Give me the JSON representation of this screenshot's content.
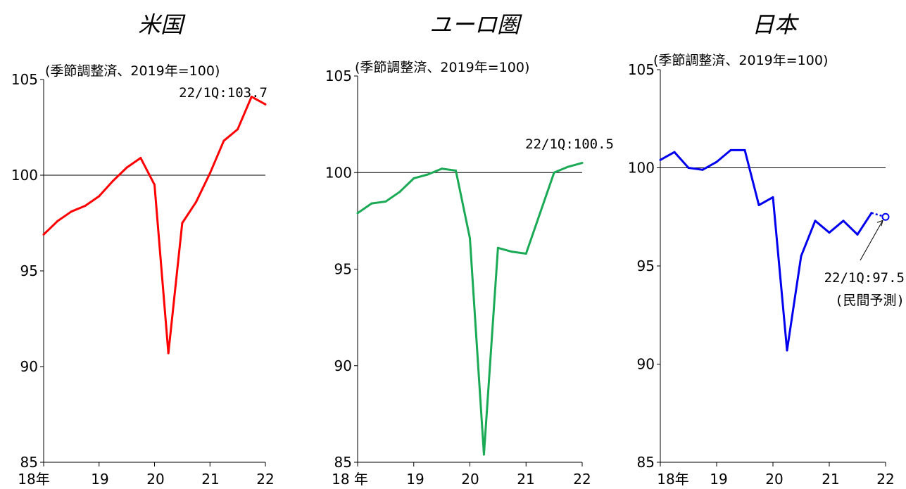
{
  "chart_data": [
    {
      "type": "line",
      "title": "米国",
      "unit_note": "(季節調整済、2019年=100)",
      "ylim": [
        85,
        105
      ],
      "yticks": [
        "85",
        "90",
        "95",
        "100",
        "105"
      ],
      "xticks": [
        "18年",
        "19",
        "20",
        "21",
        "22"
      ],
      "reference_line": 100,
      "color": "#ff0000",
      "series": [
        {
          "x": [
            "2018Q1",
            "2018Q2",
            "2018Q3",
            "2018Q4",
            "2019Q1",
            "2019Q2",
            "2019Q3",
            "2019Q4",
            "2020Q1",
            "2020Q2",
            "2020Q3",
            "2020Q4",
            "2021Q1",
            "2021Q2",
            "2021Q3",
            "2021Q4",
            "2022Q1"
          ],
          "values": [
            96.9,
            97.6,
            98.1,
            98.4,
            98.9,
            99.7,
            100.4,
            100.9,
            99.5,
            90.7,
            97.5,
            98.6,
            100.1,
            101.8,
            102.4,
            104.1,
            103.7
          ]
        }
      ],
      "annotation": "22/1Q:103.7"
    },
    {
      "type": "line",
      "title": "ユーロ圏",
      "unit_note": "(季節調整済、2019年=100)",
      "ylim": [
        85,
        105
      ],
      "yticks": [
        "85",
        "90",
        "95",
        "100",
        "105"
      ],
      "xticks": [
        "18 年",
        "19",
        "20",
        "21",
        "22"
      ],
      "reference_line": 100,
      "color": "#1aaa55",
      "series": [
        {
          "x": [
            "2018Q1",
            "2018Q2",
            "2018Q3",
            "2018Q4",
            "2019Q1",
            "2019Q2",
            "2019Q3",
            "2019Q4",
            "2020Q1",
            "2020Q2",
            "2020Q3",
            "2020Q4",
            "2021Q1",
            "2021Q2",
            "2021Q3",
            "2021Q4",
            "2022Q1"
          ],
          "values": [
            97.9,
            98.4,
            98.5,
            99.0,
            99.7,
            99.9,
            100.2,
            100.1,
            96.6,
            85.4,
            96.1,
            95.9,
            95.8,
            97.9,
            100.0,
            100.3,
            100.5
          ]
        }
      ],
      "annotation": "22/1Q:100.5"
    },
    {
      "type": "line",
      "title": "日本",
      "unit_note": "(季節調整済、2019年=100)",
      "ylim": [
        85,
        105
      ],
      "yticks": [
        "85",
        "90",
        "95",
        "100",
        "105"
      ],
      "xticks": [
        "18年",
        "19",
        "20",
        "21",
        "22"
      ],
      "reference_line": 100,
      "color": "#0000ee",
      "series": [
        {
          "x": [
            "2018Q1",
            "2018Q2",
            "2018Q3",
            "2018Q4",
            "2019Q1",
            "2019Q2",
            "2019Q3",
            "2019Q4",
            "2020Q1",
            "2020Q2",
            "2020Q3",
            "2020Q4",
            "2021Q1",
            "2021Q2",
            "2021Q3",
            "2021Q4"
          ],
          "values": [
            100.4,
            100.8,
            100.0,
            99.9,
            100.3,
            100.9,
            100.9,
            98.1,
            98.5,
            90.7,
            95.5,
            97.3,
            96.7,
            97.3,
            96.6,
            97.7
          ]
        }
      ],
      "forecast": {
        "x": "2022Q1",
        "value": 97.5
      },
      "annotation": "22/1Q:97.5",
      "annotation2": "(民間予測)"
    }
  ]
}
